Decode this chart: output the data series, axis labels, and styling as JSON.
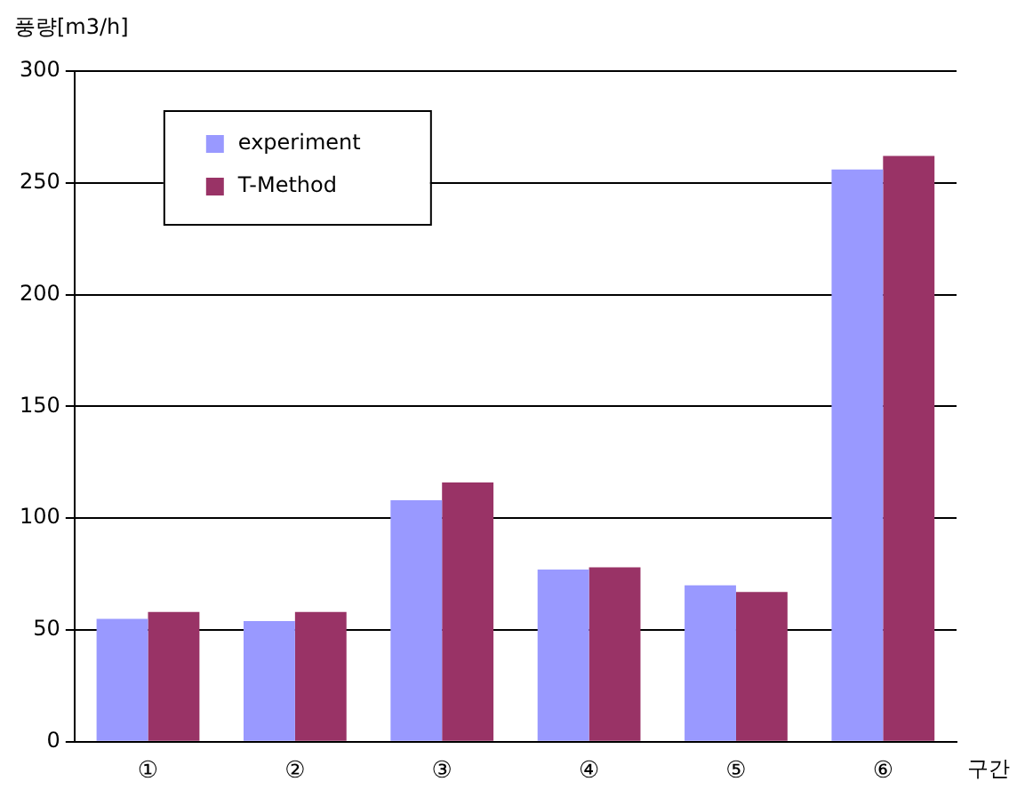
{
  "chart_data": {
    "type": "bar",
    "xlabel": "구간",
    "ylabel": "풍량[m3/h]",
    "categories": [
      "①",
      "②",
      "③",
      "④",
      "⑤",
      "⑥"
    ],
    "series": [
      {
        "name": "experiment",
        "color": "#9999ff",
        "values": [
          55,
          54,
          108,
          77,
          70,
          256
        ]
      },
      {
        "name": "T-Method",
        "color": "#993366",
        "values": [
          58,
          58,
          116,
          78,
          67,
          262
        ]
      }
    ],
    "ylim": [
      0,
      300
    ],
    "yticks": [
      0,
      50,
      100,
      150,
      200,
      250,
      300
    ],
    "grid": "y",
    "legend": "top left"
  }
}
